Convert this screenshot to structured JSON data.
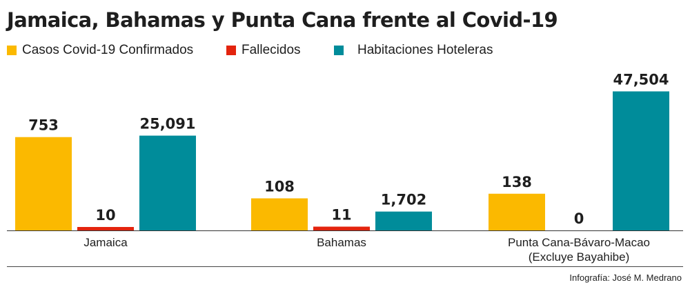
{
  "title": "Jamaica, Bahamas y Punta Cana frente al Covid-19",
  "credit": "Infografía: José M. Medrano",
  "colors": {
    "confirmados": "#fbb900",
    "fallecidos": "#e3240e",
    "habitaciones": "#008c9a"
  },
  "chart_data": {
    "type": "bar",
    "title": "Jamaica, Bahamas y Punta Cana frente al Covid-19",
    "categories": [
      "Jamaica",
      "Bahamas",
      "Punta Cana-Bávaro-Macao (Excluye Bayahibe)"
    ],
    "category_lines": [
      [
        "Jamaica"
      ],
      [
        "Bahamas"
      ],
      [
        "Punta Cana-Bávaro-Macao",
        "(Excluye Bayahibe)"
      ]
    ],
    "series": [
      {
        "name": "Casos Covid-19 Confirmados",
        "values": [
          753,
          108,
          138
        ],
        "labels": [
          "753",
          "108",
          "138"
        ],
        "color": "#fbb900"
      },
      {
        "name": "Fallecidos",
        "values": [
          10,
          11,
          0
        ],
        "labels": [
          "10",
          "11",
          "0"
        ],
        "color": "#e3240e"
      },
      {
        "name": "Habitaciones Hoteleras",
        "values": [
          25091,
          1702,
          47504
        ],
        "labels": [
          "25,091",
          "1,702",
          "47,504"
        ],
        "color": "#008c9a"
      }
    ],
    "legend_position": "top-left",
    "grid": false,
    "scale": "not proportional"
  }
}
